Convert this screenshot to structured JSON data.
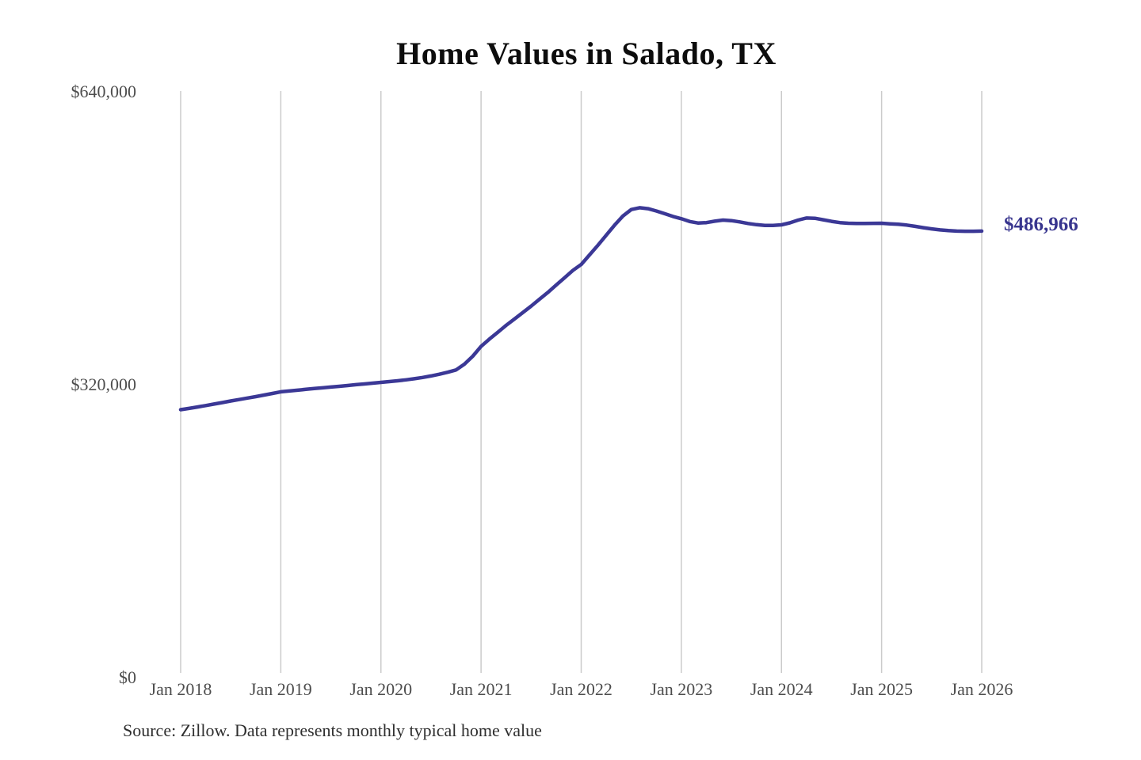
{
  "chart_data": {
    "type": "line",
    "title": "Home Values in Salado, TX",
    "source_note": "Source: Zillow. Data represents monthly typical home value",
    "end_label": "$486,966",
    "latest_value": 486966,
    "unit": "USD",
    "ylim": [
      0,
      640000
    ],
    "grid": "vertical-only",
    "legend": "none",
    "y_ticks": [
      {
        "value": 0,
        "label": "$0"
      },
      {
        "value": 320000,
        "label": "$320,000"
      },
      {
        "value": 640000,
        "label": "$640,000"
      }
    ],
    "x_ticks": [
      {
        "index": 0,
        "label": "Jan 2018"
      },
      {
        "index": 12,
        "label": "Jan 2019"
      },
      {
        "index": 24,
        "label": "Jan 2020"
      },
      {
        "index": 36,
        "label": "Jan 2021"
      },
      {
        "index": 48,
        "label": "Jan 2022"
      },
      {
        "index": 60,
        "label": "Jan 2023"
      },
      {
        "index": 72,
        "label": "Jan 2024"
      },
      {
        "index": 84,
        "label": "Jan 2025"
      },
      {
        "index": 96,
        "label": "Jan 2026"
      }
    ],
    "series": [
      {
        "name": "Typical home value",
        "start_month": "2018-01",
        "frequency": "monthly",
        "values": [
          291900,
          293300,
          294800,
          296400,
          298000,
          299700,
          301400,
          303000,
          304600,
          306200,
          307900,
          309600,
          311400,
          312300,
          313200,
          314100,
          315000,
          315800,
          316600,
          317400,
          318300,
          319200,
          320000,
          320900,
          321700,
          322600,
          323500,
          324500,
          325700,
          327100,
          328700,
          330600,
          332800,
          335300,
          341600,
          350300,
          361000,
          369000,
          376500,
          384000,
          391000,
          398000,
          405000,
          412500,
          420000,
          428000,
          436000,
          444000,
          450500,
          461000,
          471500,
          482500,
          493500,
          503500,
          510500,
          512500,
          511500,
          509000,
          506000,
          503000,
          500500,
          497500,
          495800,
          496300,
          497800,
          499000,
          498400,
          497000,
          495300,
          494000,
          493200,
          493200,
          493800,
          496000,
          499000,
          501300,
          501000,
          499400,
          497600,
          496300,
          495600,
          495400,
          495400,
          495500,
          495600,
          495000,
          494500,
          493600,
          492200,
          490700,
          489400,
          488300,
          487500,
          487000,
          486800,
          486800,
          486966
        ]
      }
    ],
    "colors": {
      "line": "#3b3896",
      "end_label": "#38358e",
      "grid": "#cbcbcb",
      "axis_text": "#4d4d4d",
      "title_text": "#0d0d0d",
      "source_text": "#2e2e2e",
      "background": "#ffffff"
    }
  }
}
